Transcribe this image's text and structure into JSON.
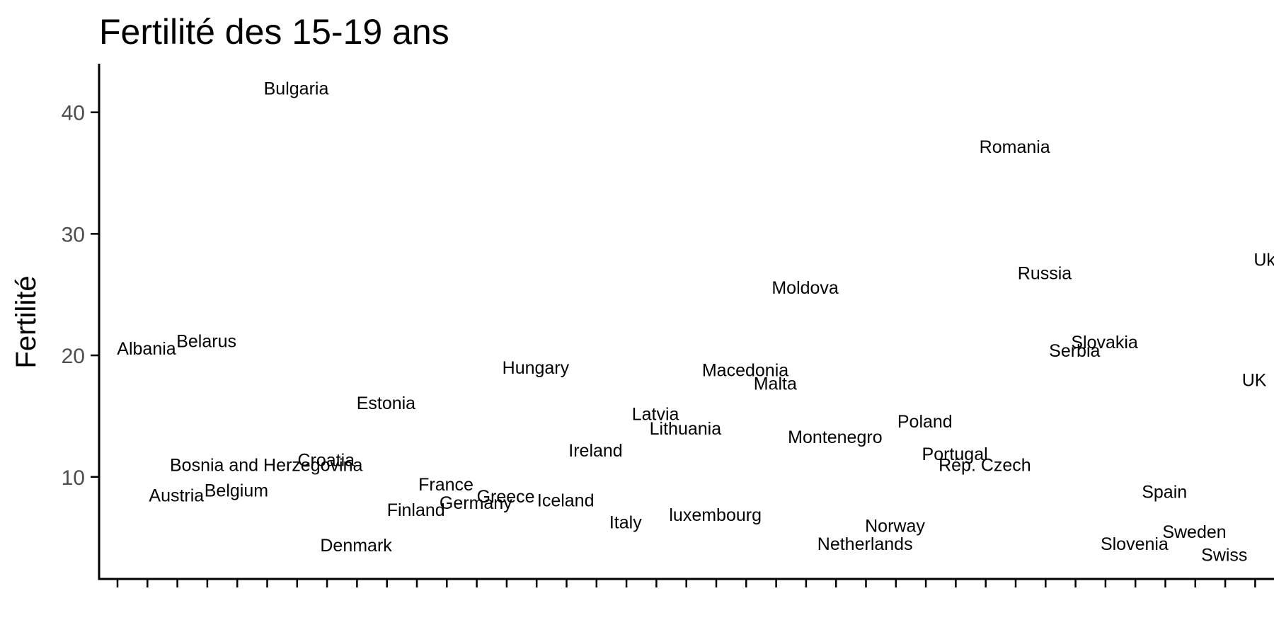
{
  "chart_data": {
    "type": "scatter",
    "title": "Fertilité des 15-19 ans",
    "ylabel": "Fertilité",
    "xlabel": "",
    "ylim": [
      1.6,
      44
    ],
    "yticks": [
      10,
      20,
      30,
      40
    ],
    "grid": false,
    "legend": "none",
    "marker": "text-label",
    "x_categories": [
      "Albania",
      "Austria",
      "Belarus",
      "Belgium",
      "Bosnia and Herzegovina",
      "Bulgaria",
      "Croatia",
      "Denmark",
      "Estonia",
      "Finland",
      "France",
      "Germany",
      "Greece",
      "Hungary",
      "Iceland",
      "Ireland",
      "Italy",
      "Latvia",
      "Lithuania",
      "luxembourg",
      "Macedonia",
      "Malta",
      "Moldova",
      "Montenegro",
      "Netherlands",
      "Norway",
      "Poland",
      "Portugal",
      "Rép. Czech",
      "Romania",
      "Russia",
      "Serbia",
      "Slovakia",
      "Slovenia",
      "Spain",
      "Sweden",
      "Swiss",
      "UK",
      "Ukraine"
    ],
    "points": [
      {
        "label": "Albania",
        "y": 20.6
      },
      {
        "label": "Austria",
        "y": 8.5
      },
      {
        "label": "Belarus",
        "y": 21.2
      },
      {
        "label": "Belgium",
        "y": 8.9
      },
      {
        "label": "Bosnia and Herzegovina",
        "y": 11.0
      },
      {
        "label": "Bulgaria",
        "y": 42.0
      },
      {
        "label": "Croatia",
        "y": 11.4
      },
      {
        "label": "Denmark",
        "y": 4.4
      },
      {
        "label": "Estonia",
        "y": 16.1
      },
      {
        "label": "Finland",
        "y": 7.3
      },
      {
        "label": "France",
        "y": 9.4
      },
      {
        "label": "Germany",
        "y": 7.9
      },
      {
        "label": "Greece",
        "y": 8.4
      },
      {
        "label": "Hungary",
        "y": 19.0
      },
      {
        "label": "Iceland",
        "y": 8.1
      },
      {
        "label": "Ireland",
        "y": 12.2
      },
      {
        "label": "Italy",
        "y": 6.3
      },
      {
        "label": "Latvia",
        "y": 15.2
      },
      {
        "label": "Lithuania",
        "y": 14.0
      },
      {
        "label": "luxembourg",
        "y": 6.9
      },
      {
        "label": "Macedonia",
        "y": 18.8
      },
      {
        "label": "Malta",
        "y": 17.7
      },
      {
        "label": "Moldova",
        "y": 25.6
      },
      {
        "label": "Montenegro",
        "y": 13.3
      },
      {
        "label": "Netherlands",
        "y": 4.5
      },
      {
        "label": "Norway",
        "y": 6.0
      },
      {
        "label": "Poland",
        "y": 14.6
      },
      {
        "label": "Portugal",
        "y": 11.9
      },
      {
        "label": "Rép. Czech",
        "y": 11.0
      },
      {
        "label": "Romania",
        "y": 37.2
      },
      {
        "label": "Russia",
        "y": 26.8
      },
      {
        "label": "Serbia",
        "y": 20.4
      },
      {
        "label": "Slovakia",
        "y": 21.1
      },
      {
        "label": "Slovenia",
        "y": 4.5
      },
      {
        "label": "Spain",
        "y": 8.8
      },
      {
        "label": "Sweden",
        "y": 5.5
      },
      {
        "label": "Swiss",
        "y": 3.6
      },
      {
        "label": "UK",
        "y": 18.0
      },
      {
        "label": "Ukraine",
        "y": 27.9
      }
    ]
  }
}
